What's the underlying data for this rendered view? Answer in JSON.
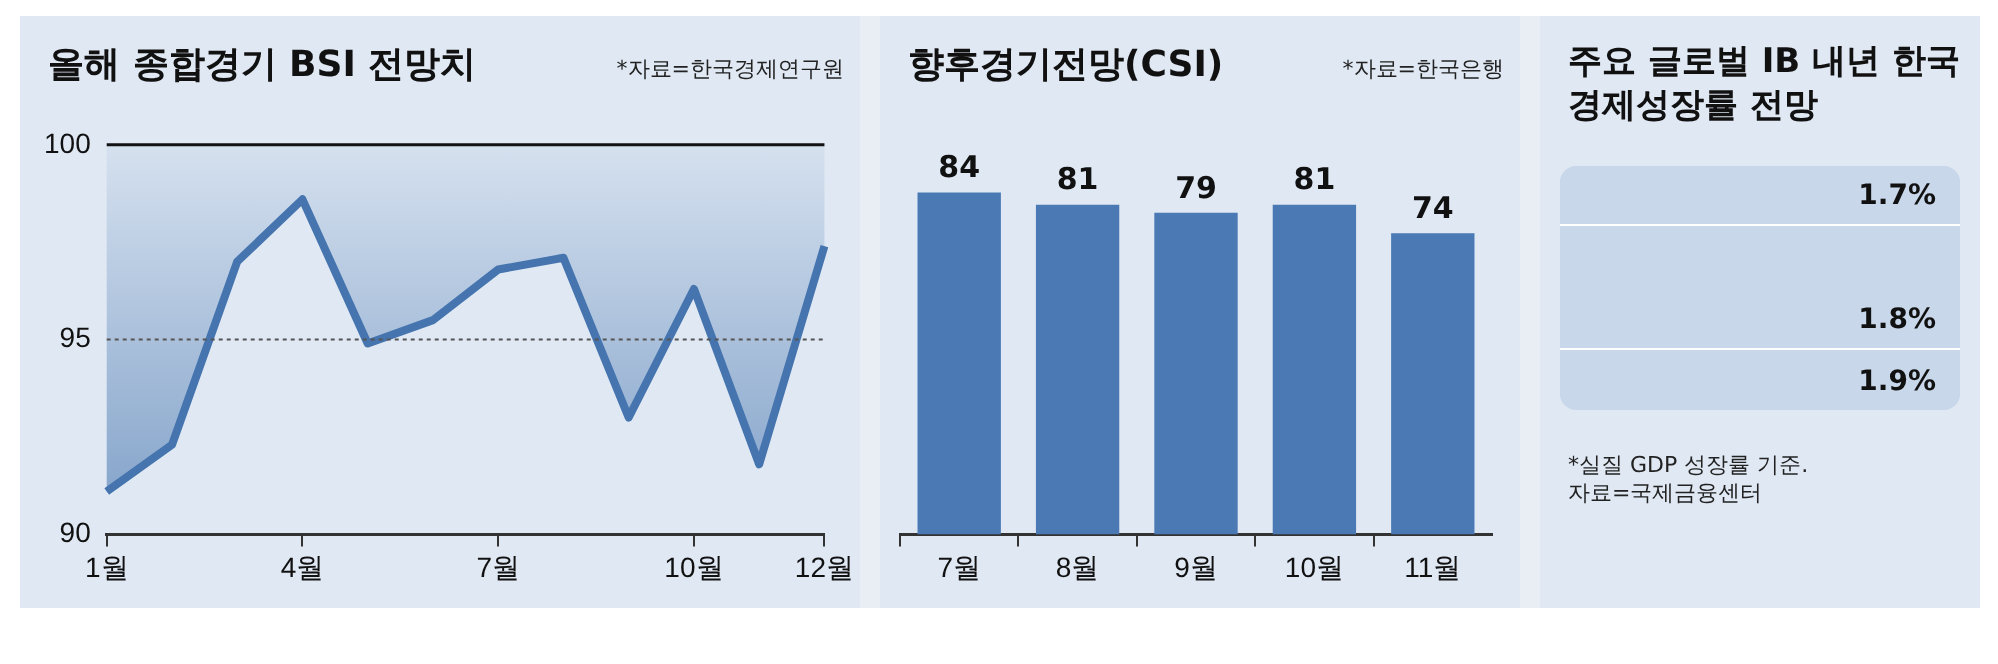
{
  "chart_data": [
    {
      "type": "line",
      "title": "올해 종합경기 BSI 전망치",
      "annotations": [
        "*자료=한국경제연구원"
      ],
      "categories": [
        "1월",
        null,
        null,
        "4월",
        null,
        null,
        "7월",
        null,
        null,
        "10월",
        null,
        "12월"
      ],
      "series": [
        {
          "color": "#4574ae",
          "values": [
            91.1,
            92.3,
            97.0,
            98.6,
            94.9,
            95.5,
            96.8,
            97.1,
            93.0,
            96.3,
            91.8,
            97.4
          ],
          "lower": [
            91.1,
            92.3,
            97.0,
            98.6,
            94.9,
            95.5,
            96.8,
            97.1,
            93.0,
            96.3,
            91.8,
            97.4
          ],
          "upper": [
            100,
            100,
            100,
            100,
            100,
            100,
            100,
            100,
            100,
            100,
            100,
            100
          ]
        }
      ],
      "ylim": [
        90,
        100
      ],
      "yticks": [
        90,
        95,
        100
      ],
      "grid": false,
      "legend": false,
      "ref_lines": [
        {
          "axis": "y",
          "value": 95,
          "line_style": "dotted",
          "color": "#555555"
        }
      ]
    },
    {
      "type": "bar",
      "title": "향후경기전망(CSI)",
      "annotations": [
        "*자료=한국은행"
      ],
      "categories": [
        "7월",
        "8월",
        "9월",
        "10월",
        "11월"
      ],
      "values": [
        84,
        81,
        79,
        81,
        74
      ],
      "color": "#4a79b3",
      "data_labels": true,
      "tick_labels": "x",
      "grid": false,
      "legend": false
    },
    {
      "type": "other",
      "title": "주요 글로벌 IB 내년 한국 경제성장률 전망",
      "annotations": [
        "1.7%",
        "1.8%",
        "1.9%",
        "*실질 GDP 성장률 기준.",
        "자료=국제금융센터"
      ]
    }
  ]
}
